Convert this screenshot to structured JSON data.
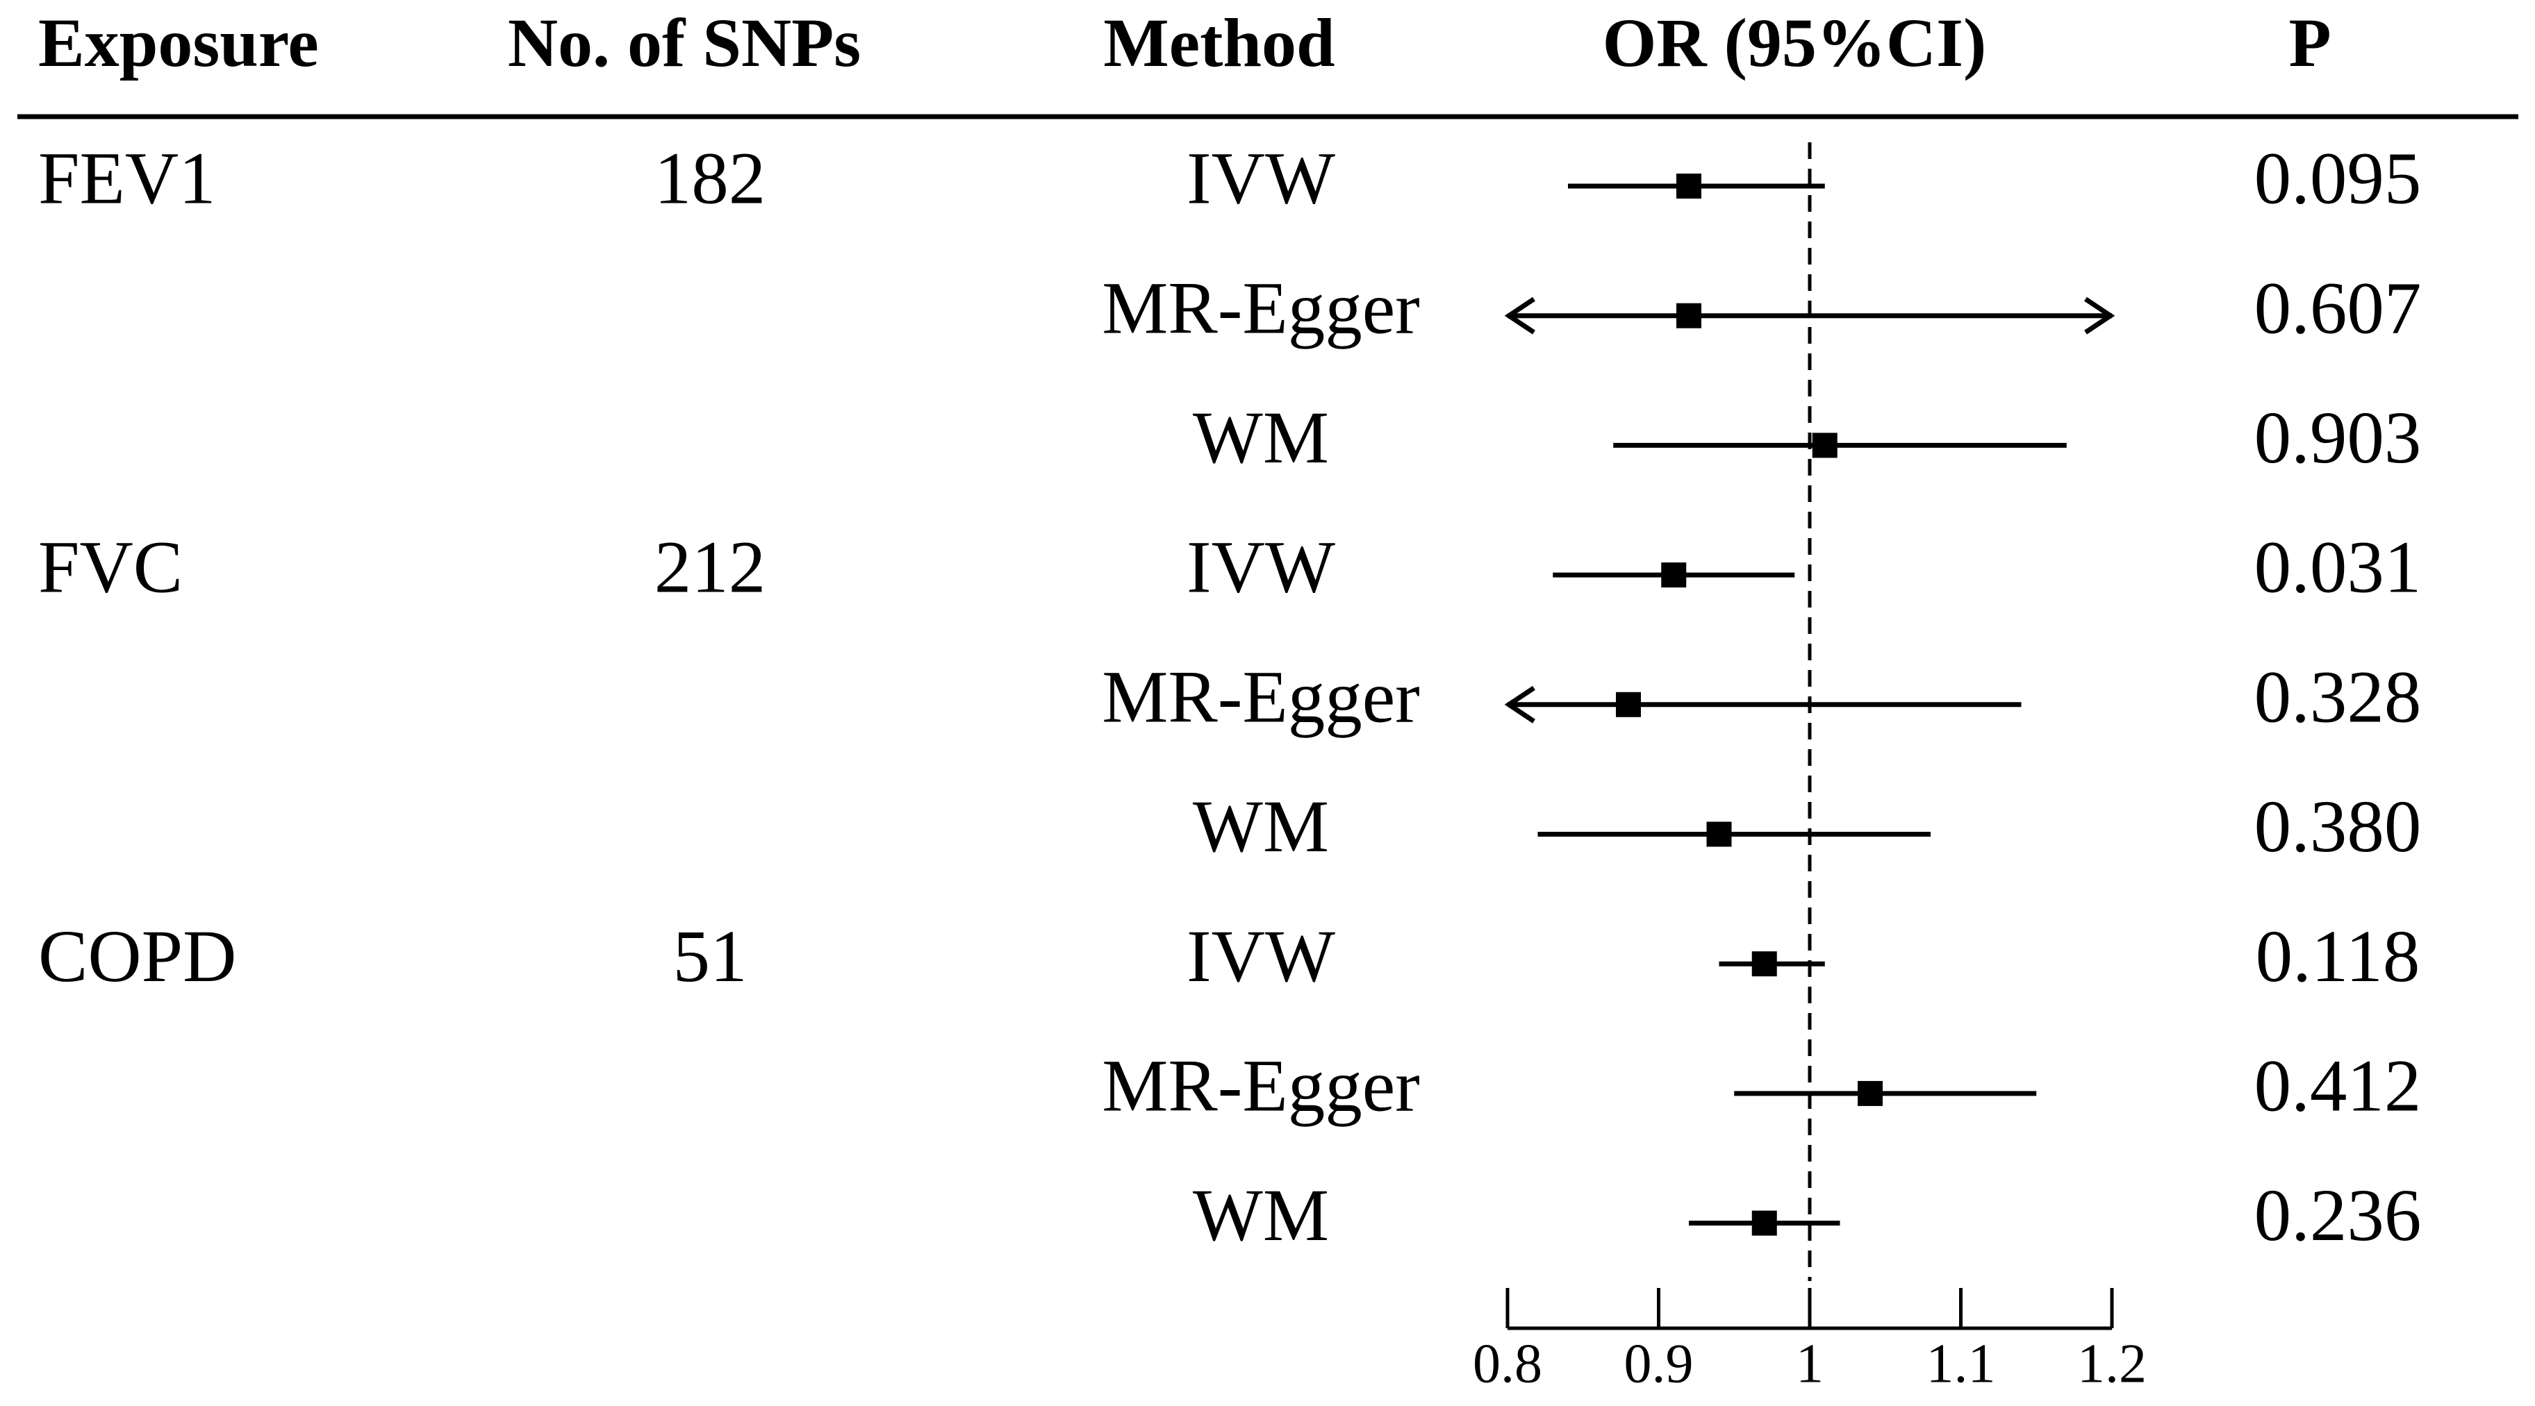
{
  "chart_data": {
    "type": "forest",
    "columns": {
      "exposure": "Exposure",
      "snps": "No. of SNPs",
      "method": "Method",
      "or": "OR (95%CI)",
      "p": "P"
    },
    "groups": [
      {
        "exposure": "FEV1",
        "snps": 182,
        "rows": [
          {
            "method": "IVW",
            "or": 0.92,
            "lower": 0.84,
            "upper": 1.01,
            "p": "0.095"
          },
          {
            "method": "MR-Egger",
            "or": 0.92,
            "lower": null,
            "upper": null,
            "p": "0.607"
          },
          {
            "method": "WM",
            "or": 1.01,
            "lower": 0.87,
            "upper": 1.17,
            "p": "0.903"
          }
        ]
      },
      {
        "exposure": "FVC",
        "snps": 212,
        "rows": [
          {
            "method": "IVW",
            "or": 0.91,
            "lower": 0.83,
            "upper": 0.99,
            "p": "0.031"
          },
          {
            "method": "MR-Egger",
            "or": 0.88,
            "lower": null,
            "upper": 1.14,
            "p": "0.328"
          },
          {
            "method": "WM",
            "or": 0.94,
            "lower": 0.82,
            "upper": 1.08,
            "p": "0.380"
          }
        ]
      },
      {
        "exposure": "COPD",
        "snps": 51,
        "rows": [
          {
            "method": "IVW",
            "or": 0.97,
            "lower": 0.94,
            "upper": 1.01,
            "p": "0.118"
          },
          {
            "method": "MR-Egger",
            "or": 1.04,
            "lower": 0.95,
            "upper": 1.15,
            "p": "0.412"
          },
          {
            "method": "WM",
            "or": 0.97,
            "lower": 0.92,
            "upper": 1.02,
            "p": "0.236"
          }
        ]
      }
    ],
    "xlim": [
      0.8,
      1.2
    ],
    "xticks": [
      0.8,
      0.9,
      1,
      1.1,
      1.2
    ],
    "reference_line": 1,
    "color": "#000000"
  }
}
